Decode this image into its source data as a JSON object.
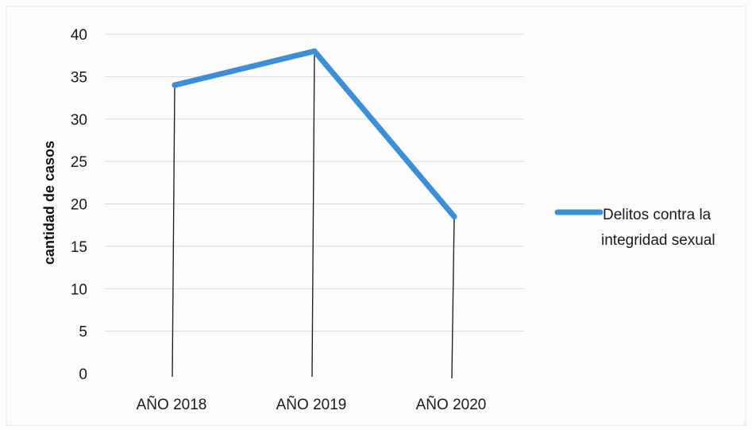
{
  "chart_data": {
    "type": "line",
    "categories": [
      "AÑO 2018",
      "AÑO 2019",
      "AÑO 2020"
    ],
    "series": [
      {
        "name": "Delitos contra la integridad sexual",
        "values": [
          34,
          38,
          18.5
        ],
        "color": "#3c8fd6"
      }
    ],
    "xlabel": "",
    "ylabel": "cantidad de casos",
    "ylim": [
      0,
      40
    ],
    "yticks": [
      "0",
      "5",
      "10",
      "15",
      "20",
      "25",
      "30",
      "35",
      "40"
    ],
    "grid": true,
    "drop_lines": true,
    "legend": {
      "position": "right",
      "lines": [
        "Delitos contra la",
        "integridad sexual"
      ]
    }
  }
}
